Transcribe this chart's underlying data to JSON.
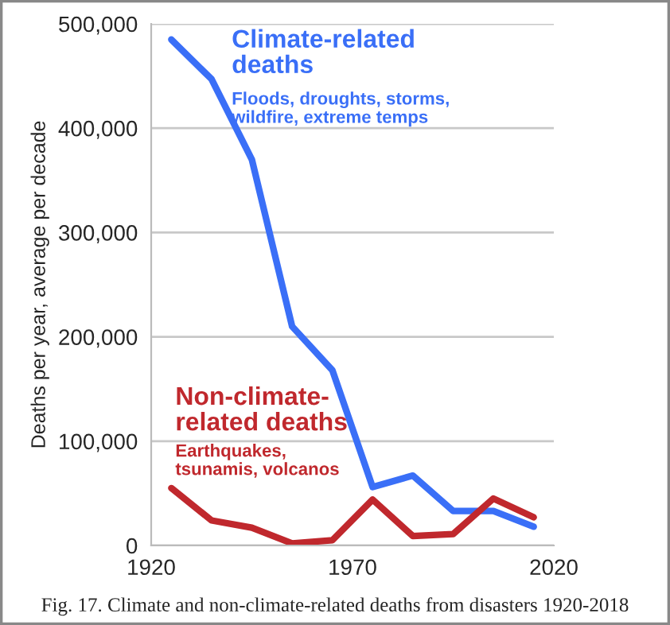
{
  "chart_data": {
    "type": "line",
    "ylabel": "Deaths per year, average per decade",
    "x": [
      1925,
      1935,
      1945,
      1955,
      1965,
      1975,
      1985,
      1995,
      2005,
      2015
    ],
    "series": [
      {
        "name": "Climate-related\ndeaths",
        "color": "#3a6ff7",
        "values": [
          485000,
          447000,
          370000,
          210000,
          168000,
          56000,
          67000,
          33000,
          33000,
          18000
        ]
      },
      {
        "name": "Non-climate-\nrelated deaths",
        "color": "#c0282d",
        "values": [
          55000,
          24000,
          17000,
          2000,
          5000,
          44000,
          9000,
          11000,
          45000,
          27000
        ]
      }
    ],
    "annotations": [
      "Floods, droughts, storms,\nwildfire, extreme temps",
      "Earthquakes,\ntsunamis, volcanos",
      "Fig. 17. Climate and non-climate-related deaths from disasters 1920-2018"
    ],
    "xlim": [
      1920,
      2020
    ],
    "xticks": [
      1920,
      1970,
      2020
    ],
    "ylim": [
      0,
      500000
    ],
    "yticks": [
      {
        "value": 0,
        "label": "0"
      },
      {
        "value": 100000,
        "label": "100,000"
      },
      {
        "value": 200000,
        "label": "200,000"
      },
      {
        "value": 300000,
        "label": "300,000"
      },
      {
        "value": 400000,
        "label": "400,000"
      },
      {
        "value": 500000,
        "label": "500,000"
      }
    ],
    "grid": "y",
    "legend": false,
    "marker": "none",
    "line_style": "solid"
  }
}
